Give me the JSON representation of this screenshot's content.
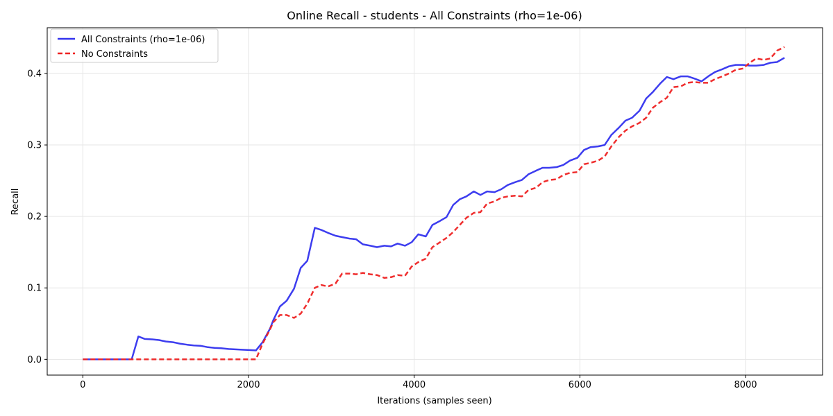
{
  "chart_data": {
    "type": "line",
    "title": "Online Recall - students - All Constraints (rho=1e-06)",
    "xlabel": "Iterations (samples seen)",
    "ylabel": "Recall",
    "xlim": [
      -430,
      8930
    ],
    "ylim": [
      -0.022,
      0.464
    ],
    "xticks": [
      0,
      2000,
      4000,
      6000,
      8000
    ],
    "xtick_labels": [
      "0",
      "2000",
      "4000",
      "6000",
      "8000"
    ],
    "yticks": [
      0.0,
      0.1,
      0.2,
      0.3,
      0.4
    ],
    "ytick_labels": [
      "0.0",
      "0.1",
      "0.2",
      "0.3",
      "0.4"
    ],
    "grid": true,
    "legend_position": "upper-left",
    "series": [
      {
        "name": "All Constraints (rho=1e-06)",
        "color": "#3333ee",
        "style": "solid",
        "x": [
          0,
          170,
          340,
          510,
          590,
          670,
          750,
          840,
          920,
          1000,
          1090,
          1170,
          1260,
          1340,
          1420,
          1510,
          1590,
          1670,
          1760,
          1840,
          1920,
          2010,
          2090,
          2170,
          2260,
          2300,
          2380,
          2460,
          2550,
          2630,
          2710,
          2800,
          2880,
          2960,
          3050,
          3130,
          3220,
          3300,
          3380,
          3470,
          3550,
          3640,
          3720,
          3800,
          3890,
          3970,
          4050,
          4140,
          4220,
          4300,
          4390,
          4470,
          4550,
          4630,
          4720,
          4800,
          4880,
          4970,
          5050,
          5130,
          5220,
          5300,
          5380,
          5470,
          5550,
          5630,
          5720,
          5800,
          5880,
          5970,
          6050,
          6130,
          6220,
          6300,
          6380,
          6470,
          6550,
          6630,
          6720,
          6800,
          6880,
          6970,
          7050,
          7130,
          7220,
          7300,
          7380,
          7470,
          7550,
          7630,
          7720,
          7800,
          7880,
          7970,
          8050,
          8130,
          8220,
          8300,
          8380,
          8470
        ],
        "y": [
          0.0,
          0.0,
          0.0,
          0.0,
          0.0,
          0.032,
          0.0285,
          0.028,
          0.027,
          0.025,
          0.024,
          0.022,
          0.0205,
          0.0195,
          0.019,
          0.017,
          0.016,
          0.0155,
          0.0145,
          0.014,
          0.0135,
          0.013,
          0.0125,
          0.024,
          0.043,
          0.055,
          0.074,
          0.082,
          0.099,
          0.128,
          0.138,
          0.184,
          0.181,
          0.177,
          0.173,
          0.171,
          0.169,
          0.168,
          0.161,
          0.159,
          0.157,
          0.159,
          0.158,
          0.162,
          0.159,
          0.164,
          0.175,
          0.172,
          0.188,
          0.193,
          0.199,
          0.216,
          0.224,
          0.228,
          0.235,
          0.23,
          0.235,
          0.234,
          0.238,
          0.244,
          0.248,
          0.251,
          0.259,
          0.264,
          0.268,
          0.268,
          0.269,
          0.272,
          0.278,
          0.282,
          0.293,
          0.297,
          0.298,
          0.3,
          0.314,
          0.324,
          0.334,
          0.338,
          0.348,
          0.365,
          0.374,
          0.386,
          0.395,
          0.392,
          0.396,
          0.396,
          0.393,
          0.389,
          0.396,
          0.402,
          0.406,
          0.41,
          0.412,
          0.412,
          0.411,
          0.411,
          0.412,
          0.415,
          0.416,
          0.422
        ]
      },
      {
        "name": "No Constraints",
        "color": "#ee2222",
        "style": "dashed",
        "x": [
          0,
          170,
          340,
          510,
          590,
          670,
          750,
          840,
          920,
          1000,
          1090,
          1170,
          1260,
          1340,
          1420,
          1510,
          1590,
          1670,
          1760,
          1840,
          1920,
          2010,
          2090,
          2170,
          2260,
          2300,
          2380,
          2460,
          2550,
          2630,
          2710,
          2800,
          2880,
          2960,
          3050,
          3130,
          3220,
          3300,
          3380,
          3470,
          3550,
          3640,
          3720,
          3800,
          3890,
          3970,
          4050,
          4140,
          4220,
          4300,
          4390,
          4470,
          4550,
          4630,
          4720,
          4800,
          4880,
          4970,
          5050,
          5130,
          5220,
          5300,
          5380,
          5470,
          5550,
          5630,
          5720,
          5800,
          5880,
          5970,
          6050,
          6130,
          6220,
          6300,
          6380,
          6470,
          6550,
          6630,
          6720,
          6800,
          6880,
          6970,
          7050,
          7130,
          7220,
          7300,
          7380,
          7470,
          7550,
          7630,
          7720,
          7800,
          7880,
          7970,
          8050,
          8130,
          8220,
          8300,
          8380,
          8470
        ],
        "y": [
          0.0,
          0.0,
          0.0,
          0.0,
          0.0,
          0.0,
          0.0,
          0.0,
          0.0,
          0.0,
          0.0,
          0.0,
          0.0,
          0.0,
          0.0,
          0.0,
          0.0,
          0.0,
          0.0,
          0.0,
          0.0,
          0.0,
          0.0,
          0.022,
          0.042,
          0.052,
          0.062,
          0.062,
          0.058,
          0.064,
          0.078,
          0.1,
          0.104,
          0.102,
          0.106,
          0.12,
          0.12,
          0.119,
          0.121,
          0.119,
          0.118,
          0.114,
          0.115,
          0.118,
          0.117,
          0.13,
          0.136,
          0.141,
          0.157,
          0.163,
          0.17,
          0.178,
          0.188,
          0.198,
          0.205,
          0.206,
          0.218,
          0.221,
          0.226,
          0.228,
          0.229,
          0.228,
          0.237,
          0.24,
          0.248,
          0.251,
          0.252,
          0.258,
          0.261,
          0.262,
          0.273,
          0.275,
          0.278,
          0.284,
          0.298,
          0.311,
          0.32,
          0.326,
          0.331,
          0.338,
          0.352,
          0.36,
          0.366,
          0.381,
          0.382,
          0.387,
          0.388,
          0.387,
          0.387,
          0.392,
          0.396,
          0.4,
          0.405,
          0.407,
          0.415,
          0.421,
          0.419,
          0.421,
          0.432,
          0.437
        ]
      }
    ]
  }
}
